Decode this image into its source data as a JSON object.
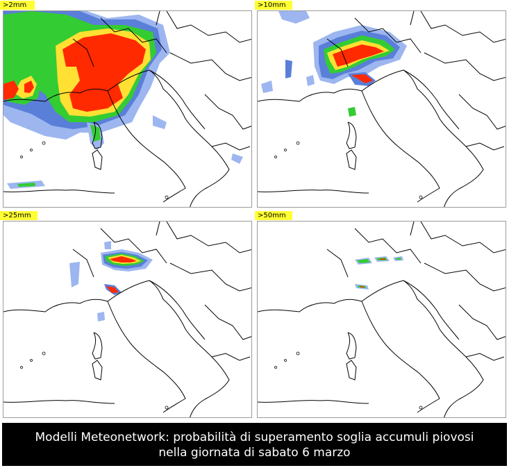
{
  "panels": [
    {
      "label": ">2mm"
    },
    {
      "label": ">10mm"
    },
    {
      "label": ">25mm"
    },
    {
      "label": ">50mm"
    }
  ],
  "caption": {
    "line1": "Modelli Meteonetwork: probabilità di superamento soglia accumuli piovosi",
    "line2": "nella giornata di sabato 6 marzo"
  },
  "colors": {
    "background": "#ffffff",
    "label_bg": "#ffff33",
    "caption_bg": "#000000",
    "caption_text": "#ffffff",
    "coast": "#000000",
    "prob_low": "#9db6f0",
    "prob_midlow": "#5a7fd8",
    "prob_mid": "#33cc33",
    "prob_midhigh": "#ffe033",
    "prob_high": "#ff2a00"
  }
}
